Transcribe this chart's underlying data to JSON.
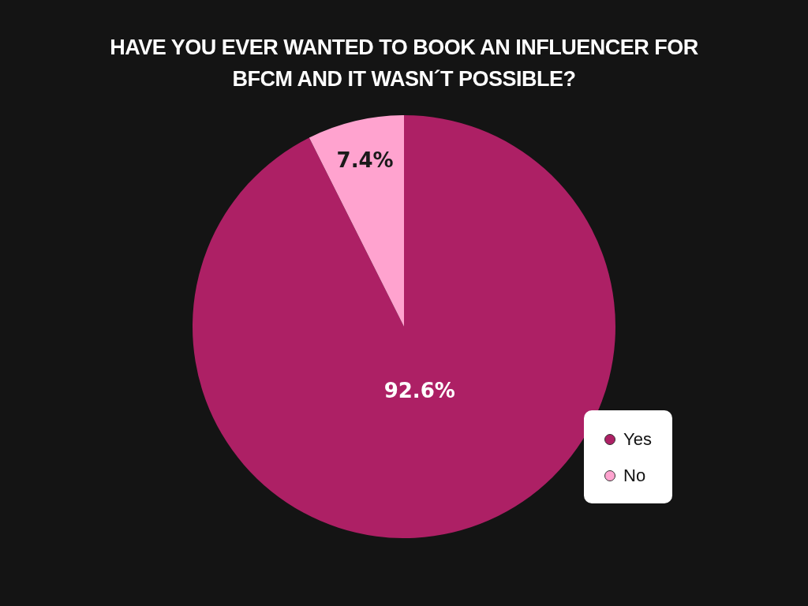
{
  "chart_data": {
    "type": "pie",
    "title": "HAVE YOU EVER WANTED TO BOOK AN INFLUENCER FOR BFCM AND IT WASN´T POSSIBLE?",
    "categories": [
      "Yes",
      "No"
    ],
    "values": [
      92.6,
      7.4
    ],
    "colors": [
      "#ad2065",
      "#ffa3cf"
    ],
    "value_labels": [
      "92.6%",
      "7.4%"
    ],
    "legend": "bottom right"
  }
}
